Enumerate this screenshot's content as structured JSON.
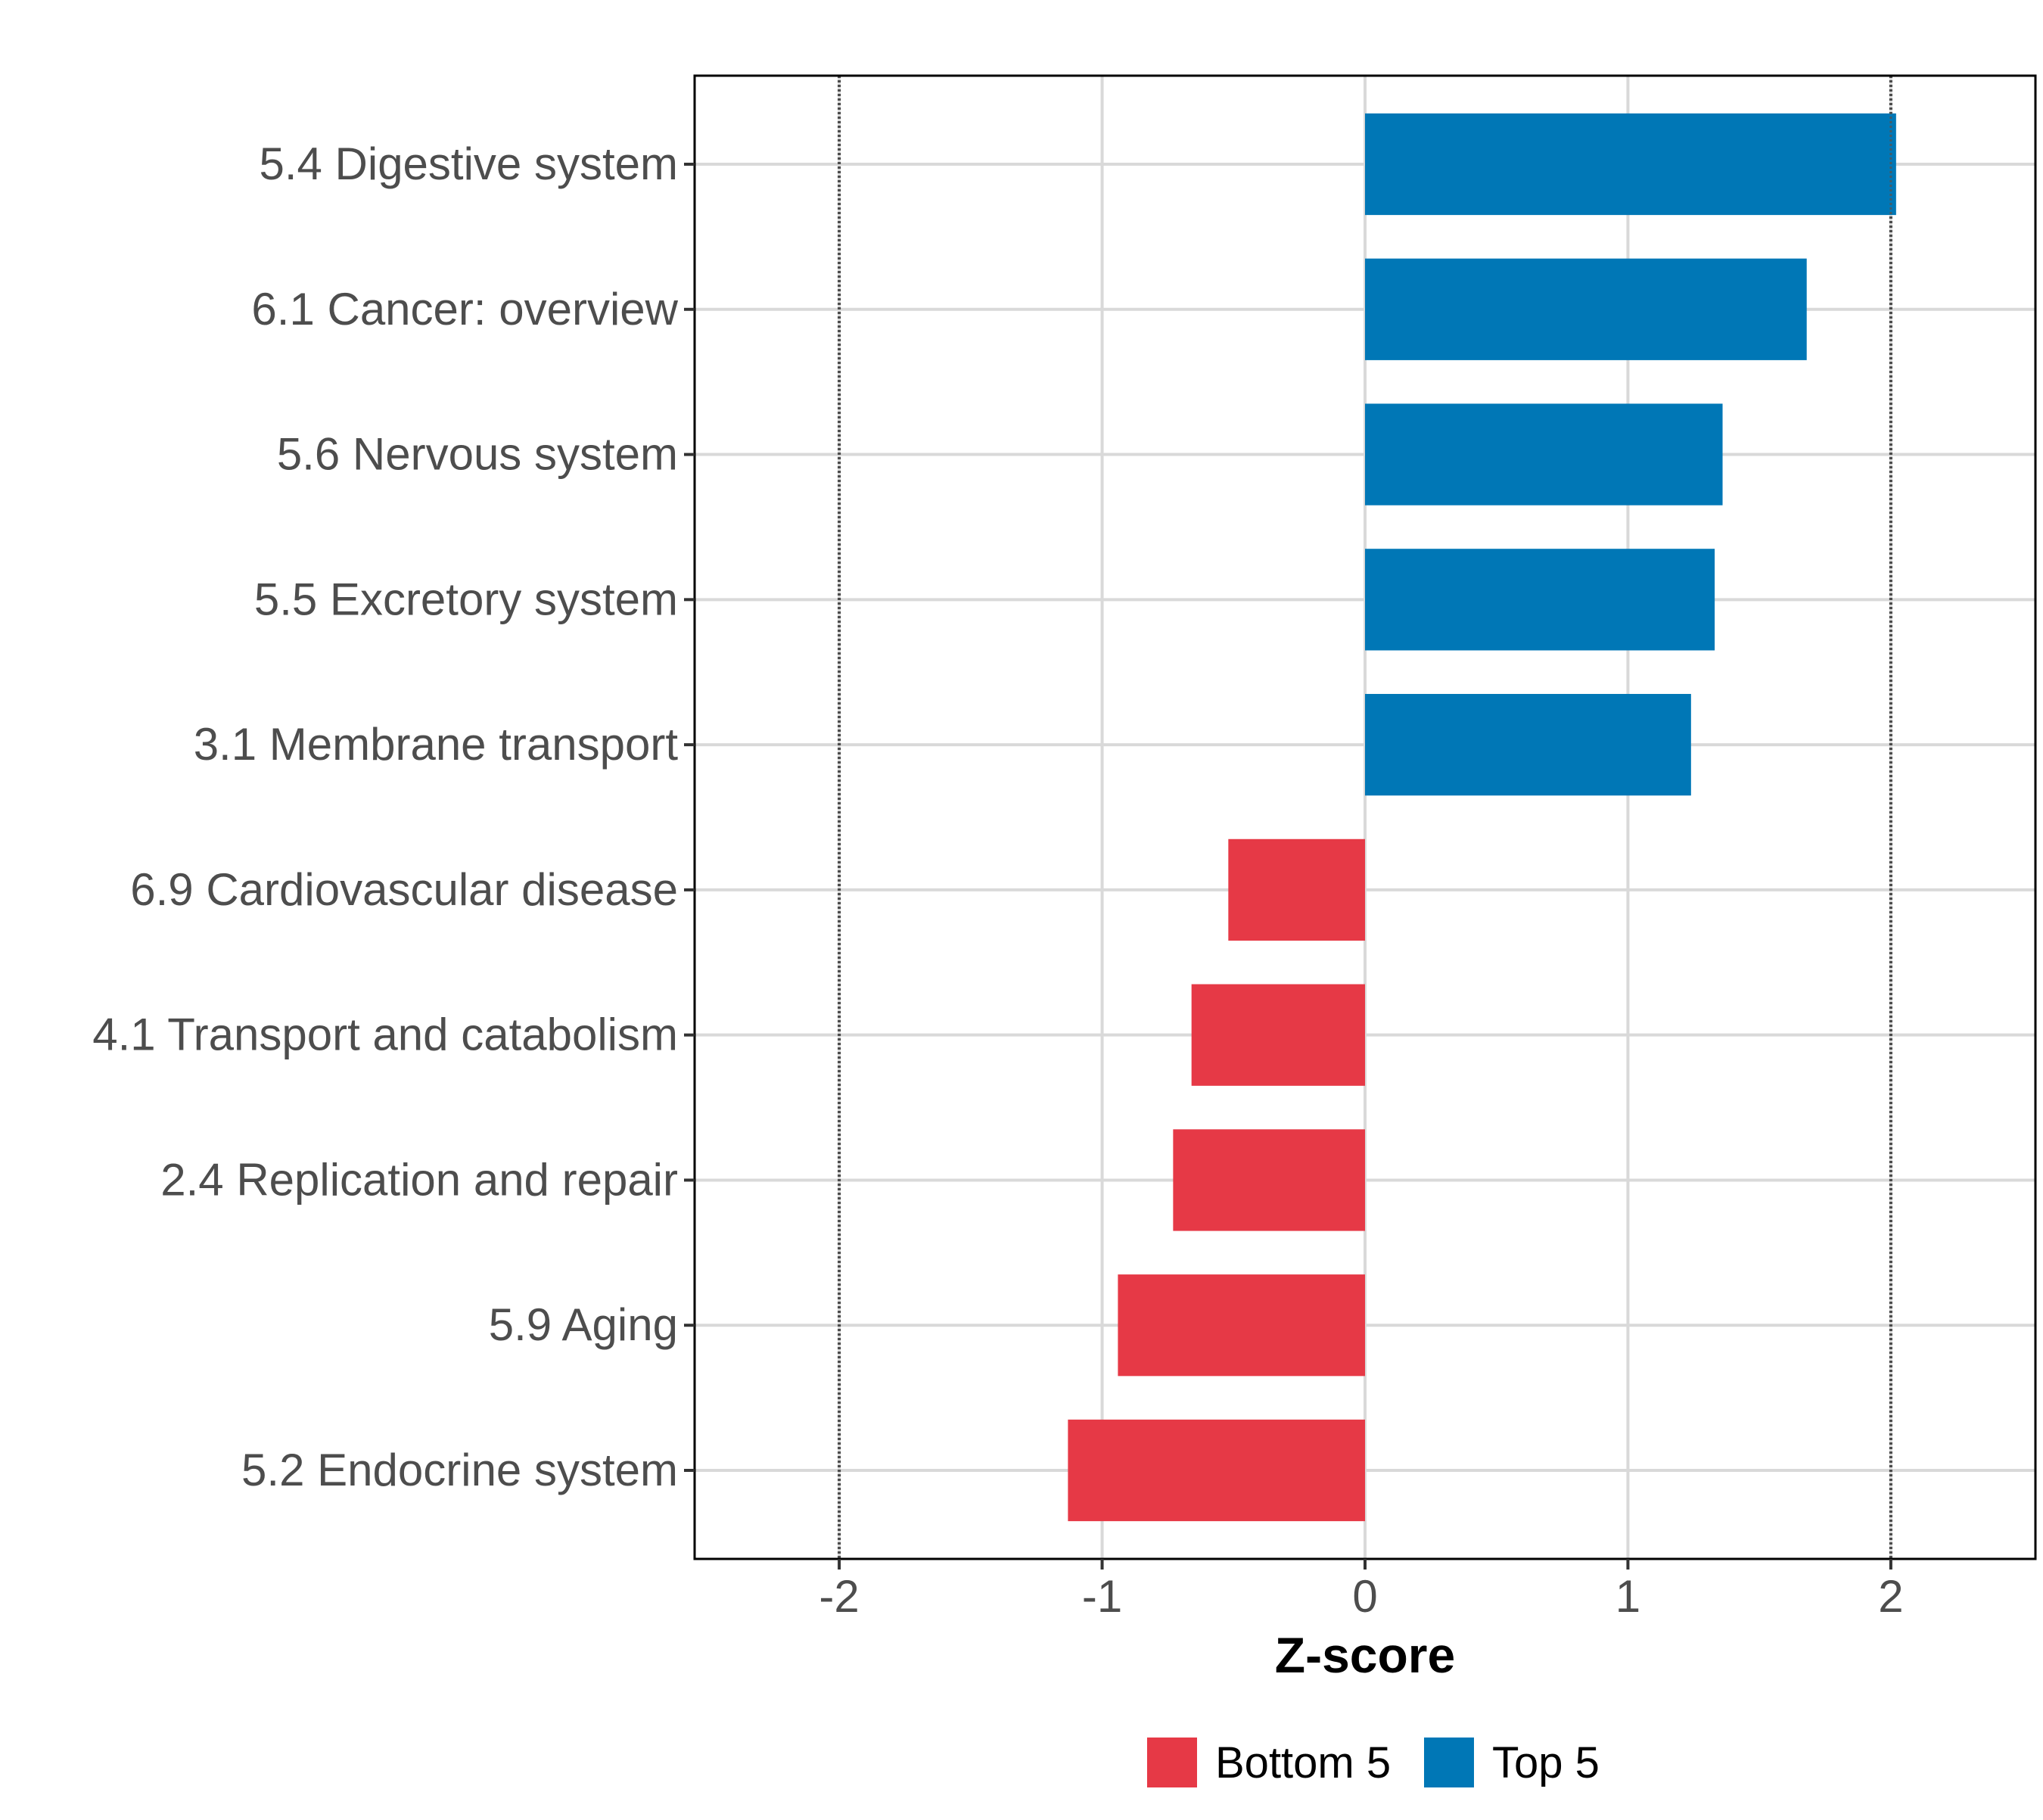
{
  "chart_data": {
    "type": "bar",
    "orientation": "horizontal",
    "title": "",
    "xlabel": "Z-score",
    "ylabel": "",
    "xlim": [
      -2.55,
      2.55
    ],
    "xticks": [
      -2,
      -1,
      0,
      1,
      2
    ],
    "xtick_labels": [
      "-2",
      "-1",
      "0",
      "1",
      "2"
    ],
    "grid": true,
    "reference_lines": [
      -2,
      2
    ],
    "categories": [
      "5.4 Digestive system",
      "6.1 Cancer: overview",
      "5.6 Nervous system",
      "5.5 Excretory system",
      "3.1 Membrane transport",
      "6.9 Cardiovascular disease",
      "4.1 Transport and catabolism",
      "2.4 Replication and repair",
      "5.9 Aging",
      "5.2 Endocrine system"
    ],
    "values": [
      2.02,
      1.68,
      1.36,
      1.33,
      1.24,
      -0.52,
      -0.66,
      -0.73,
      -0.94,
      -1.13
    ],
    "groups": [
      "Top 5",
      "Top 5",
      "Top 5",
      "Top 5",
      "Top 5",
      "Bottom 5",
      "Bottom 5",
      "Bottom 5",
      "Bottom 5",
      "Bottom 5"
    ],
    "legend": {
      "position": "bottom",
      "entries": [
        {
          "label": "Bottom 5",
          "color": "#E63946"
        },
        {
          "label": "Top 5",
          "color": "#0077B6"
        }
      ]
    },
    "colors": {
      "Bottom 5": "#E63946",
      "Top 5": "#0077B6"
    }
  }
}
